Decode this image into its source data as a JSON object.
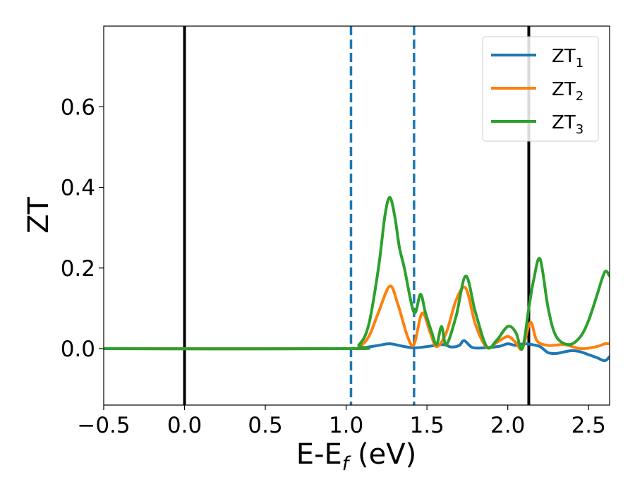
{
  "chart_data": {
    "type": "line",
    "xlabel_main": "E-E",
    "xlabel_sub": "f",
    "xlabel_tail": " (eV)",
    "ylabel": "ZT",
    "xlim": [
      -0.5,
      2.63
    ],
    "ylim": [
      -0.14,
      0.8
    ],
    "xticks": [
      -0.5,
      0.0,
      0.5,
      1.0,
      1.5,
      2.0,
      2.5
    ],
    "xtick_labels": [
      "−0.5",
      "0.0",
      "0.5",
      "1.0",
      "1.5",
      "2.0",
      "2.5"
    ],
    "yticks": [
      0.0,
      0.2,
      0.4,
      0.6
    ],
    "ytick_labels": [
      "0.0",
      "0.2",
      "0.4",
      "0.6"
    ],
    "grid": false,
    "legend_position": "top-right",
    "vlines": [
      {
        "x": 0.0,
        "style": "solid",
        "color": "#000000"
      },
      {
        "x": 2.13,
        "style": "solid",
        "color": "#000000"
      },
      {
        "x": 1.03,
        "style": "dashed",
        "color": "#1f77b4"
      },
      {
        "x": 1.42,
        "style": "dashed",
        "color": "#1f77b4"
      }
    ],
    "series": [
      {
        "name": "ZT",
        "sub": "1",
        "color": "#1f77b4",
        "x": [
          -0.5,
          1.0,
          1.1,
          1.2,
          1.27,
          1.35,
          1.42,
          1.5,
          1.6,
          1.65,
          1.7,
          1.73,
          1.78,
          1.85,
          1.95,
          2.0,
          2.05,
          2.1,
          2.15,
          2.2,
          2.25,
          2.3,
          2.35,
          2.4,
          2.45,
          2.5,
          2.55,
          2.6,
          2.63
        ],
        "y": [
          0.0,
          0.0,
          0.002,
          0.008,
          0.012,
          0.006,
          0.002,
          0.005,
          0.01,
          0.004,
          0.008,
          0.02,
          0.003,
          0.002,
          0.006,
          0.012,
          0.008,
          0.012,
          0.01,
          0.005,
          -0.01,
          -0.012,
          -0.008,
          -0.005,
          -0.008,
          -0.015,
          -0.022,
          -0.03,
          -0.02
        ]
      },
      {
        "name": "ZT",
        "sub": "2",
        "color": "#ff7f0e",
        "x": [
          -0.5,
          1.0,
          1.08,
          1.14,
          1.2,
          1.27,
          1.32,
          1.38,
          1.42,
          1.47,
          1.52,
          1.56,
          1.62,
          1.68,
          1.74,
          1.8,
          1.87,
          1.93,
          2.0,
          2.05,
          2.09,
          2.14,
          2.18,
          2.25,
          2.35,
          2.45,
          2.55,
          2.6,
          2.63
        ],
        "y": [
          0.0,
          0.0,
          0.005,
          0.03,
          0.09,
          0.155,
          0.11,
          0.03,
          0.01,
          0.088,
          0.04,
          0.005,
          0.04,
          0.12,
          0.15,
          0.06,
          0.003,
          0.015,
          0.03,
          0.015,
          0.0,
          0.065,
          0.02,
          0.008,
          0.01,
          0.0,
          0.005,
          0.012,
          0.012
        ]
      },
      {
        "name": "ZT",
        "sub": "3",
        "color": "#2ca02c",
        "x": [
          -0.5,
          1.0,
          1.08,
          1.14,
          1.2,
          1.24,
          1.27,
          1.3,
          1.33,
          1.36,
          1.42,
          1.46,
          1.49,
          1.53,
          1.56,
          1.59,
          1.62,
          1.68,
          1.74,
          1.8,
          1.87,
          1.93,
          2.0,
          2.05,
          2.09,
          2.13,
          2.16,
          2.2,
          2.25,
          2.3,
          2.38,
          2.45,
          2.5,
          2.55,
          2.6,
          2.63
        ],
        "y": [
          0.0,
          0.0,
          0.01,
          0.06,
          0.2,
          0.33,
          0.375,
          0.33,
          0.25,
          0.2,
          0.09,
          0.135,
          0.09,
          0.04,
          0.01,
          0.055,
          0.01,
          0.08,
          0.18,
          0.09,
          0.005,
          0.02,
          0.055,
          0.04,
          0.0,
          0.1,
          0.17,
          0.222,
          0.1,
          0.03,
          0.01,
          0.03,
          0.07,
          0.13,
          0.19,
          0.18
        ]
      }
    ]
  }
}
